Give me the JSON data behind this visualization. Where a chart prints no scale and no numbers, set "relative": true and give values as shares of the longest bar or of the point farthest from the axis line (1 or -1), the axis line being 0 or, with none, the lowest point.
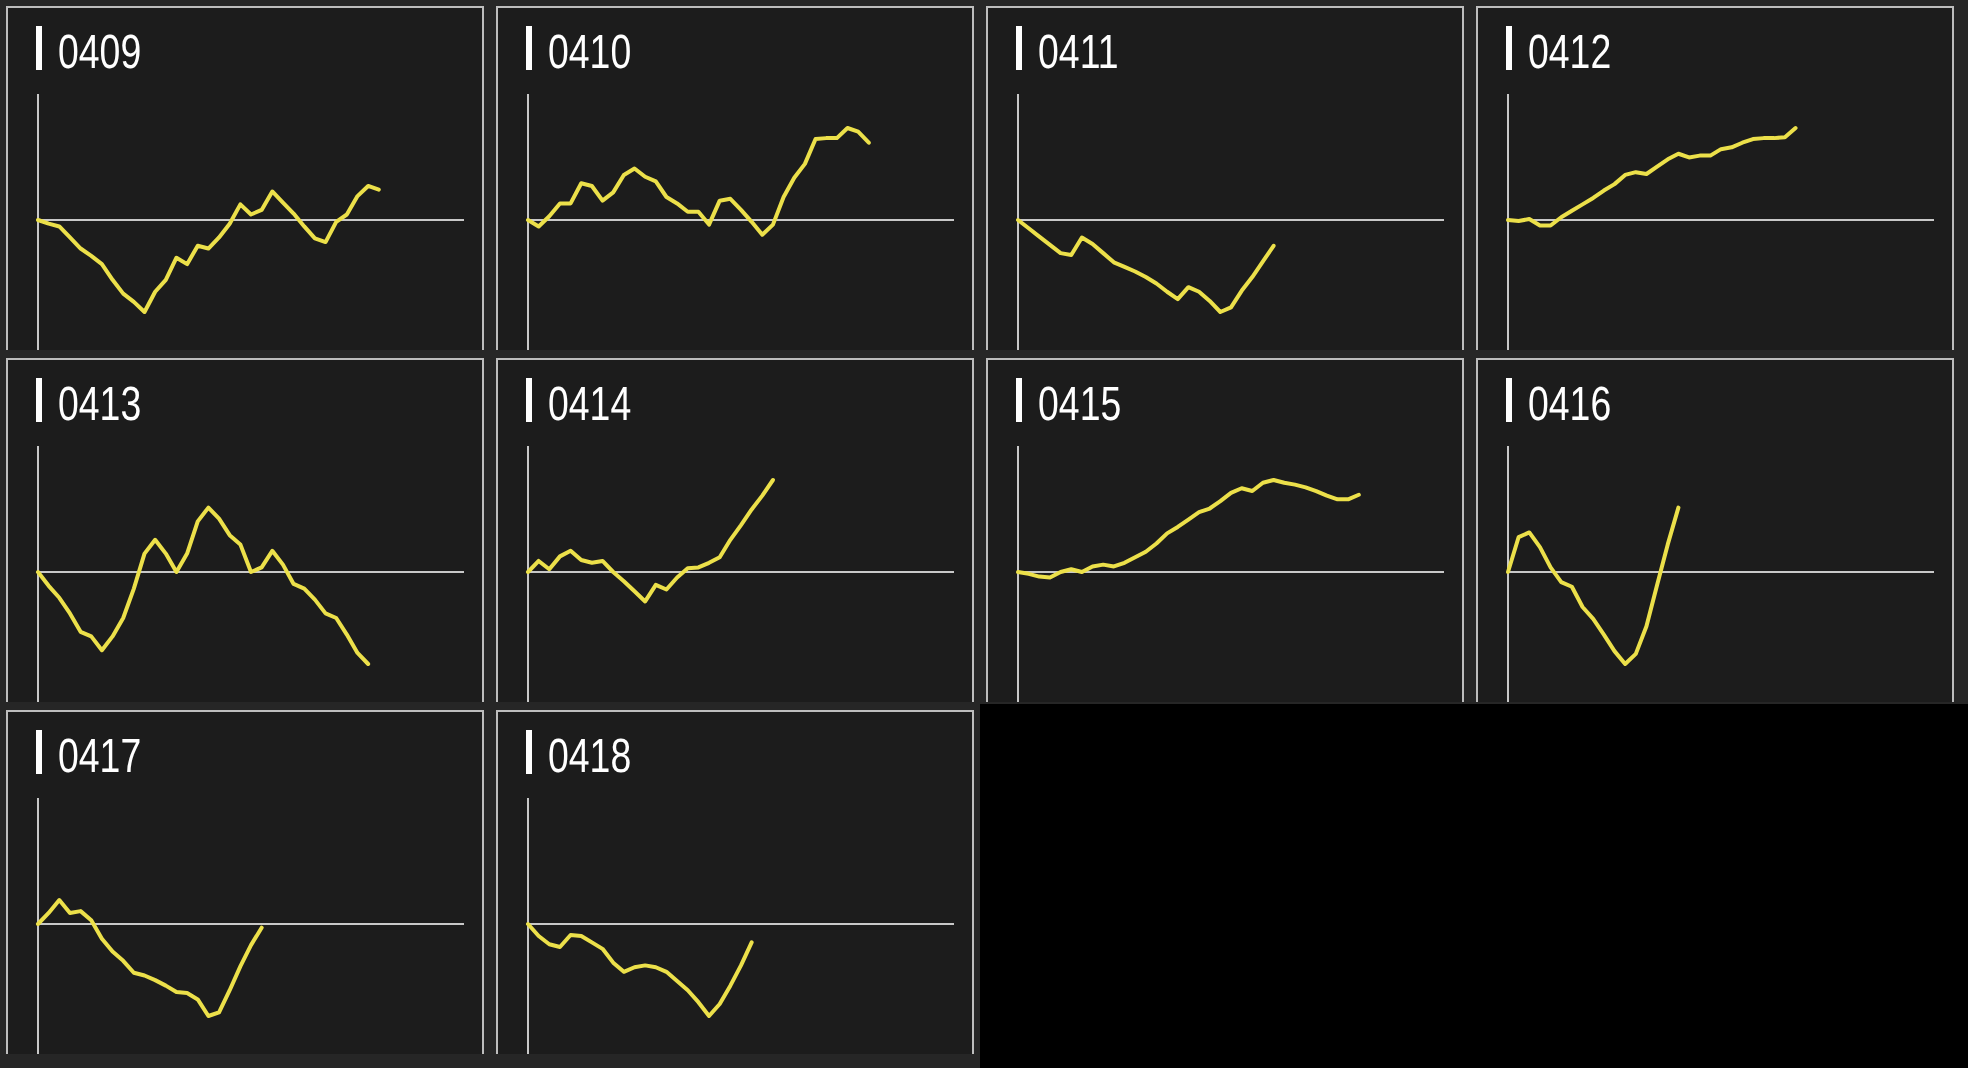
{
  "chart_data": [
    {
      "type": "line",
      "title": "0409",
      "relative": true,
      "color": "#ece04a",
      "categories": [
        null,
        null,
        null,
        null,
        null,
        null,
        null,
        null,
        null,
        null,
        null,
        null,
        null,
        null,
        null,
        null,
        null,
        null,
        null,
        null,
        null,
        null,
        null,
        null,
        null,
        null,
        null,
        null,
        null,
        null,
        null,
        null,
        null,
        null,
        null,
        null,
        null,
        null,
        null,
        null,
        null
      ],
      "values": [
        0,
        -0.04,
        -0.07,
        -0.19,
        -0.31,
        -0.39,
        -0.48,
        -0.65,
        -0.8,
        -0.89,
        -1,
        -0.78,
        -0.65,
        -0.41,
        -0.48,
        -0.28,
        -0.31,
        -0.19,
        -0.04,
        0.17,
        0.06,
        0.11,
        0.31,
        0.19,
        0.07,
        -0.07,
        -0.2,
        -0.24,
        -0.02,
        0.06,
        0.26,
        0.37,
        0.33,
        null,
        null,
        null,
        null,
        null,
        null,
        null,
        null
      ]
    },
    {
      "type": "line",
      "title": "0410",
      "relative": true,
      "color": "#ece04a",
      "categories": [
        null,
        null,
        null,
        null,
        null,
        null,
        null,
        null,
        null,
        null,
        null,
        null,
        null,
        null,
        null,
        null,
        null,
        null,
        null,
        null,
        null,
        null,
        null,
        null,
        null,
        null,
        null,
        null,
        null,
        null,
        null,
        null,
        null,
        null,
        null,
        null,
        null,
        null,
        null,
        null,
        null
      ],
      "values": [
        0,
        -0.07,
        0.04,
        0.18,
        0.18,
        0.4,
        0.37,
        0.21,
        0.3,
        0.49,
        0.56,
        0.47,
        0.42,
        0.25,
        0.18,
        0.09,
        0.09,
        -0.05,
        0.21,
        0.23,
        0.11,
        -0.02,
        -0.16,
        -0.05,
        0.25,
        0.46,
        0.61,
        0.88,
        0.89,
        0.89,
        1,
        0.96,
        0.84,
        null,
        null,
        null,
        null,
        null,
        null,
        null,
        null
      ]
    },
    {
      "type": "line",
      "title": "0411",
      "relative": true,
      "color": "#ece04a",
      "categories": [
        null,
        null,
        null,
        null,
        null,
        null,
        null,
        null,
        null,
        null,
        null,
        null,
        null,
        null,
        null,
        null,
        null,
        null,
        null,
        null,
        null,
        null,
        null,
        null,
        null,
        null,
        null,
        null,
        null,
        null,
        null,
        null,
        null,
        null,
        null,
        null,
        null,
        null,
        null,
        null,
        null
      ],
      "values": [
        0,
        -0.09,
        -0.18,
        -0.27,
        -0.36,
        -0.38,
        -0.19,
        -0.26,
        -0.36,
        -0.46,
        -0.51,
        -0.56,
        -0.62,
        -0.69,
        -0.78,
        -0.86,
        -0.73,
        -0.78,
        -0.88,
        -1,
        -0.95,
        -0.77,
        -0.62,
        -0.45,
        -0.28,
        null,
        null,
        null,
        null,
        null,
        null,
        null,
        null,
        null,
        null,
        null,
        null,
        null,
        null,
        null,
        null
      ]
    },
    {
      "type": "line",
      "title": "0412",
      "relative": true,
      "color": "#ece04a",
      "categories": [
        null,
        null,
        null,
        null,
        null,
        null,
        null,
        null,
        null,
        null,
        null,
        null,
        null,
        null,
        null,
        null,
        null,
        null,
        null,
        null,
        null,
        null,
        null,
        null,
        null,
        null,
        null,
        null,
        null,
        null,
        null,
        null,
        null,
        null,
        null,
        null,
        null,
        null,
        null,
        null,
        null
      ],
      "values": [
        0,
        -0.01,
        0.01,
        -0.06,
        -0.06,
        0.03,
        0.1,
        0.17,
        0.24,
        0.32,
        0.39,
        0.49,
        0.52,
        0.5,
        0.58,
        0.66,
        0.72,
        0.68,
        0.7,
        0.7,
        0.77,
        0.79,
        0.84,
        0.88,
        0.89,
        0.89,
        0.9,
        1,
        null,
        null,
        null,
        null,
        null,
        null,
        null,
        null,
        null,
        null,
        null,
        null,
        null
      ]
    },
    {
      "type": "line",
      "title": "0413",
      "relative": true,
      "color": "#ece04a",
      "categories": [
        null,
        null,
        null,
        null,
        null,
        null,
        null,
        null,
        null,
        null,
        null,
        null,
        null,
        null,
        null,
        null,
        null,
        null,
        null,
        null,
        null,
        null,
        null,
        null,
        null,
        null,
        null,
        null,
        null,
        null,
        null,
        null,
        null,
        null,
        null,
        null,
        null,
        null,
        null,
        null,
        null
      ],
      "values": [
        0,
        -0.15,
        -0.28,
        -0.45,
        -0.65,
        -0.7,
        -0.85,
        -0.7,
        -0.5,
        -0.18,
        0.2,
        0.35,
        0.2,
        0,
        0.2,
        0.55,
        0.7,
        0.58,
        0.4,
        0.3,
        0,
        0.05,
        0.23,
        0.08,
        -0.13,
        -0.18,
        -0.3,
        -0.45,
        -0.5,
        -0.68,
        -0.88,
        -1,
        null,
        null,
        null,
        null,
        null,
        null,
        null,
        null,
        null
      ]
    },
    {
      "type": "line",
      "title": "0414",
      "relative": true,
      "color": "#ece04a",
      "categories": [
        null,
        null,
        null,
        null,
        null,
        null,
        null,
        null,
        null,
        null,
        null,
        null,
        null,
        null,
        null,
        null,
        null,
        null,
        null,
        null,
        null,
        null,
        null,
        null,
        null,
        null,
        null,
        null,
        null,
        null,
        null,
        null,
        null,
        null,
        null,
        null,
        null,
        null,
        null,
        null,
        null
      ],
      "values": [
        0,
        0.12,
        0.03,
        0.17,
        0.23,
        0.13,
        0.1,
        0.12,
        0,
        -0.1,
        -0.21,
        -0.32,
        -0.14,
        -0.19,
        -0.06,
        0.04,
        0.05,
        0.1,
        0.16,
        0.35,
        0.51,
        0.68,
        0.83,
        1,
        null,
        null,
        null,
        null,
        null,
        null,
        null,
        null,
        null,
        null,
        null,
        null,
        null,
        null,
        null,
        null,
        null
      ]
    },
    {
      "type": "line",
      "title": "0415",
      "relative": true,
      "color": "#ece04a",
      "categories": [
        null,
        null,
        null,
        null,
        null,
        null,
        null,
        null,
        null,
        null,
        null,
        null,
        null,
        null,
        null,
        null,
        null,
        null,
        null,
        null,
        null,
        null,
        null,
        null,
        null,
        null,
        null,
        null,
        null,
        null,
        null,
        null,
        null,
        null,
        null,
        null,
        null,
        null,
        null,
        null,
        null
      ],
      "values": [
        0,
        -0.02,
        -0.05,
        -0.06,
        0,
        0.03,
        0,
        0.06,
        0.08,
        0.06,
        0.1,
        0.16,
        0.22,
        0.31,
        0.42,
        0.49,
        0.57,
        0.65,
        0.69,
        0.77,
        0.86,
        0.91,
        0.88,
        0.97,
        1,
        0.97,
        0.95,
        0.92,
        0.88,
        0.83,
        0.79,
        0.79,
        0.84,
        null,
        null,
        null,
        null,
        null,
        null,
        null,
        null
      ]
    },
    {
      "type": "line",
      "title": "0416",
      "relative": true,
      "color": "#ece04a",
      "categories": [
        null,
        null,
        null,
        null,
        null,
        null,
        null,
        null,
        null,
        null,
        null,
        null,
        null,
        null,
        null,
        null,
        null,
        null,
        null,
        null,
        null,
        null,
        null,
        null,
        null,
        null,
        null,
        null,
        null,
        null,
        null,
        null,
        null,
        null,
        null,
        null,
        null,
        null,
        null,
        null,
        null
      ],
      "values": [
        0,
        0.38,
        0.43,
        0.27,
        0.05,
        -0.11,
        -0.16,
        -0.38,
        -0.51,
        -0.68,
        -0.86,
        -1,
        -0.89,
        -0.59,
        -0.14,
        0.3,
        0.7,
        null,
        null,
        null,
        null,
        null,
        null,
        null,
        null,
        null,
        null,
        null,
        null,
        null,
        null,
        null,
        null,
        null,
        null,
        null,
        null,
        null,
        null,
        null,
        null
      ]
    },
    {
      "type": "line",
      "title": "0417",
      "relative": true,
      "color": "#ece04a",
      "categories": [
        null,
        null,
        null,
        null,
        null,
        null,
        null,
        null,
        null,
        null,
        null,
        null,
        null,
        null,
        null,
        null,
        null,
        null,
        null,
        null,
        null,
        null,
        null,
        null,
        null,
        null,
        null,
        null,
        null,
        null,
        null,
        null,
        null,
        null,
        null,
        null,
        null,
        null,
        null,
        null,
        null
      ],
      "values": [
        0,
        0.12,
        0.26,
        0.12,
        0.14,
        0.04,
        -0.16,
        -0.3,
        -0.4,
        -0.53,
        -0.56,
        -0.61,
        -0.67,
        -0.74,
        -0.75,
        -0.82,
        -1,
        -0.96,
        -0.72,
        -0.46,
        -0.23,
        -0.04,
        null,
        null,
        null,
        null,
        null,
        null,
        null,
        null,
        null,
        null,
        null,
        null,
        null,
        null,
        null,
        null,
        null,
        null,
        null
      ]
    },
    {
      "type": "line",
      "title": "0418",
      "relative": true,
      "color": "#ece04a",
      "categories": [
        null,
        null,
        null,
        null,
        null,
        null,
        null,
        null,
        null,
        null,
        null,
        null,
        null,
        null,
        null,
        null,
        null,
        null,
        null,
        null,
        null,
        null,
        null,
        null,
        null,
        null,
        null,
        null,
        null,
        null,
        null,
        null,
        null,
        null,
        null,
        null,
        null,
        null,
        null,
        null,
        null
      ],
      "values": [
        0,
        -0.13,
        -0.22,
        -0.25,
        -0.12,
        -0.13,
        -0.2,
        -0.27,
        -0.42,
        -0.52,
        -0.47,
        -0.45,
        -0.47,
        -0.52,
        -0.62,
        -0.72,
        -0.85,
        -1,
        -0.87,
        -0.67,
        -0.45,
        -0.2,
        null,
        null,
        null,
        null,
        null,
        null,
        null,
        null,
        null,
        null,
        null,
        null,
        null,
        null,
        null,
        null,
        null,
        null,
        null
      ]
    }
  ]
}
